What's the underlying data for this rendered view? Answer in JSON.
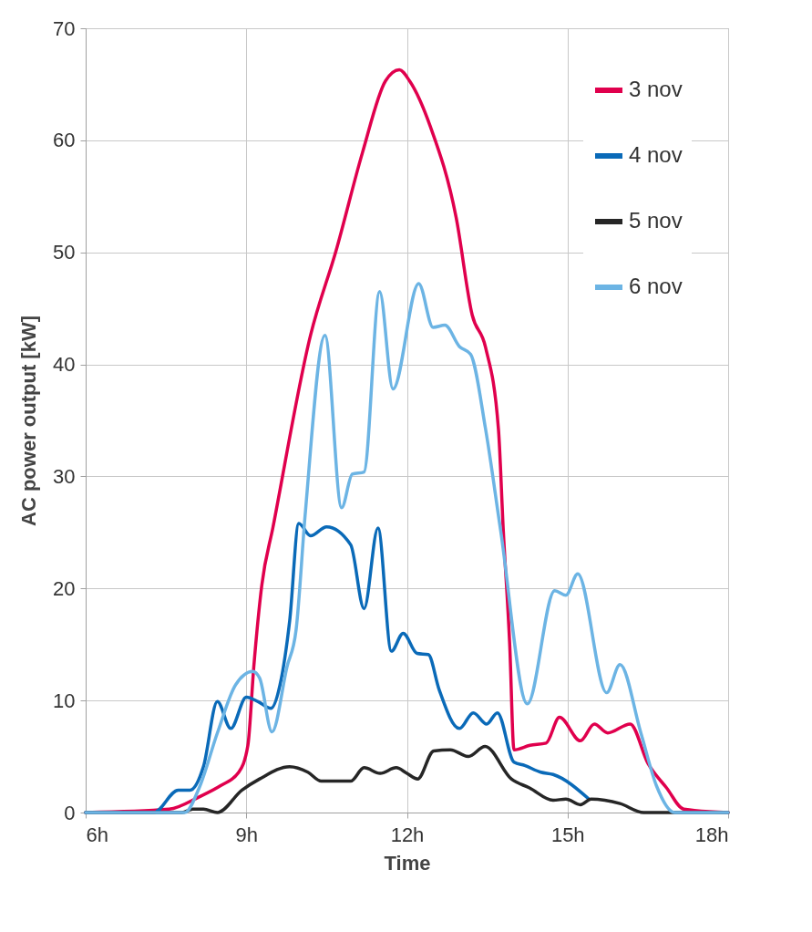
{
  "chart_data": {
    "type": "line",
    "xlabel": "Time",
    "ylabel": "AC power output [kW]",
    "xlim": [
      6,
      18
    ],
    "ylim": [
      0,
      70
    ],
    "xticks": [
      {
        "value": 6,
        "label": "6h"
      },
      {
        "value": 9,
        "label": "9h"
      },
      {
        "value": 12,
        "label": "12h"
      },
      {
        "value": 15,
        "label": "15h"
      },
      {
        "value": 18,
        "label": "18h"
      }
    ],
    "yticks": [
      0,
      10,
      20,
      30,
      40,
      50,
      60,
      70
    ],
    "grid": true,
    "legend": "top right",
    "series": [
      {
        "name": "3 nov",
        "color": "#e0004d",
        "x": [
          6,
          7.56,
          8.12,
          8.52,
          8.86,
          9.03,
          9.14,
          9.29,
          9.5,
          10.2,
          10.68,
          11.17,
          11.6,
          11.86,
          12.05,
          12.44,
          12.92,
          13.22,
          13.47,
          13.71,
          13.8,
          13.92,
          14.0,
          14.3,
          14.6,
          14.85,
          15.24,
          15.5,
          15.75,
          16.17,
          16.5,
          16.85,
          17.17,
          18
        ],
        "values": [
          0,
          0.3,
          1.4,
          2.4,
          3.6,
          6,
          13,
          20.3,
          25.5,
          42.6,
          50.2,
          58.9,
          65.3,
          66.3,
          65.3,
          61.2,
          53.1,
          44.4,
          41.5,
          34.2,
          25.2,
          15,
          5.6,
          6,
          6.2,
          8.5,
          6.4,
          7.9,
          7.1,
          7.9,
          4.4,
          2.2,
          0.3,
          0
        ]
      },
      {
        "name": "4 nov",
        "color": "#0a6ab8",
        "x": [
          6,
          7.27,
          7.73,
          7.95,
          8.2,
          8.46,
          8.71,
          9.0,
          9.22,
          9.46,
          9.63,
          9.81,
          9.98,
          10.2,
          10.5,
          10.95,
          11.2,
          11.46,
          11.71,
          11.93,
          12.19,
          12.4,
          12.6,
          12.98,
          13.24,
          13.49,
          13.69,
          14.0,
          14.2,
          14.5,
          14.73,
          15.4
        ],
        "values": [
          0,
          0,
          2,
          2,
          4.1,
          9.9,
          7.5,
          10.3,
          9.9,
          9.3,
          11.4,
          17.1,
          25.8,
          24.7,
          25.5,
          23.9,
          18.2,
          25.4,
          14.4,
          16,
          14.2,
          14.1,
          11,
          7.5,
          8.9,
          7.9,
          8.9,
          4.5,
          4.2,
          3.6,
          3.4,
          1.2
        ]
      },
      {
        "name": "5 nov",
        "color": "#262626",
        "x": [
          6,
          7.8,
          8.0,
          8.2,
          8.46,
          8.92,
          9.25,
          9.81,
          10.15,
          10.4,
          10.95,
          11.2,
          11.5,
          11.8,
          12.0,
          12.2,
          12.5,
          12.81,
          13.15,
          13.46,
          13.95,
          14.29,
          14.73,
          14.97,
          15.24,
          15.44,
          15.98,
          16.42,
          18
        ],
        "values": [
          0,
          0,
          0.3,
          0.3,
          0,
          2,
          3,
          4.1,
          3.6,
          2.8,
          2.8,
          4,
          3.5,
          4,
          3.5,
          3,
          5.5,
          5.6,
          5,
          5.9,
          3,
          2.2,
          1.1,
          1.2,
          0.7,
          1.2,
          0.8,
          0,
          0
        ]
      },
      {
        "name": "6 nov",
        "color": "#6cb4e4",
        "x": [
          6,
          7.85,
          8.12,
          8.46,
          8.8,
          9.12,
          9.25,
          9.48,
          9.76,
          9.93,
          10.1,
          10.47,
          10.78,
          10.98,
          11.2,
          11.49,
          11.74,
          12.22,
          12.49,
          12.71,
          12.98,
          13.19,
          13.47,
          13.75,
          14.25,
          14.76,
          14.97,
          15.19,
          15.73,
          15.98,
          16.37,
          16.66,
          17.0,
          18
        ],
        "values": [
          0,
          0,
          2.2,
          7.1,
          11.4,
          12.6,
          12,
          7.2,
          13,
          16.3,
          26.6,
          42.6,
          27.2,
          30.2,
          30.4,
          46.5,
          37.8,
          47.2,
          43.3,
          43.5,
          41.6,
          40.9,
          34.2,
          25.2,
          9.7,
          19.8,
          19.4,
          21.3,
          10.7,
          13.2,
          7.1,
          2.4,
          0,
          0
        ]
      }
    ]
  }
}
